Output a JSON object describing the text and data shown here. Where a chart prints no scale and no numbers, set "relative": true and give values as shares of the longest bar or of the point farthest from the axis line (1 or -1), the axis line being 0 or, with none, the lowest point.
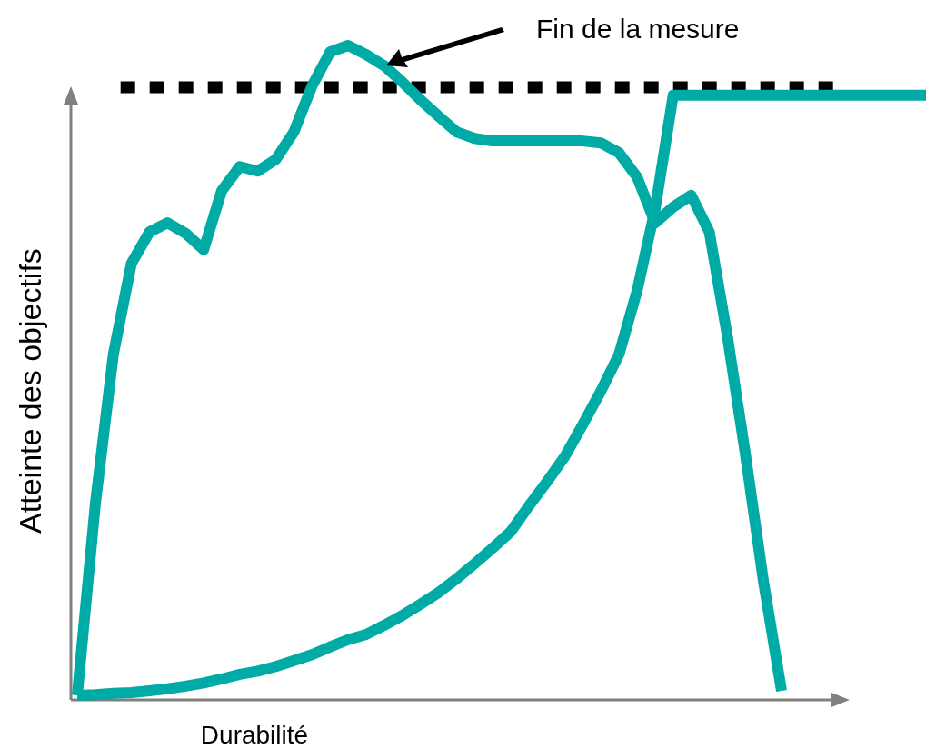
{
  "chart_data": {
    "type": "line",
    "xlabel": "Durabilité",
    "ylabel": "Atteinte des objectifs",
    "relative": true,
    "categories": [
      null,
      null,
      null,
      null,
      null,
      null,
      null,
      null,
      null,
      null,
      null,
      null,
      null,
      null,
      null,
      null,
      null,
      null,
      null,
      null,
      null,
      null,
      null,
      null,
      null,
      null,
      null,
      null,
      null,
      null,
      null,
      null,
      null,
      null,
      null,
      null,
      null,
      null,
      null,
      null,
      null,
      null,
      null,
      null,
      null,
      null,
      null,
      null
    ],
    "series": [
      {
        "color": "#00aaa5",
        "values": [
          0.007,
          0.299,
          0.528,
          0.667,
          0.715,
          0.729,
          0.713,
          0.688,
          0.778,
          0.815,
          0.808,
          0.826,
          0.868,
          0.938,
          0.99,
          1.0,
          0.986,
          0.969,
          0.944,
          0.917,
          0.892,
          0.868,
          0.858,
          0.854,
          0.854,
          0.854,
          0.854,
          0.854,
          0.854,
          0.851,
          0.836,
          0.799,
          0.729,
          0.753,
          0.771,
          0.715,
          0.556,
          0.375,
          0.181,
          0.014,
          null,
          null,
          null,
          null,
          null,
          null,
          null,
          null
        ]
      },
      {
        "color": "#00aaa5",
        "values": [
          0.007,
          0.008,
          0.01,
          0.011,
          0.014,
          0.017,
          0.021,
          0.026,
          0.032,
          0.039,
          0.044,
          0.051,
          0.06,
          0.069,
          0.081,
          0.092,
          0.1,
          0.114,
          0.129,
          0.146,
          0.164,
          0.185,
          0.208,
          0.232,
          0.257,
          0.296,
          0.333,
          0.372,
          0.421,
          0.472,
          0.528,
          0.625,
          0.75,
          0.924,
          0.924,
          0.924,
          0.924,
          0.924,
          0.924,
          0.924,
          0.924,
          0.924,
          0.924,
          0.924,
          0.924,
          0.924,
          0.924,
          0.924
        ]
      }
    ],
    "ref_lines": [
      {
        "axis": "y",
        "value": 0.936,
        "color": "#000000",
        "line_style": "dotted"
      }
    ],
    "annotations": [
      "Fin de la mesure"
    ]
  }
}
